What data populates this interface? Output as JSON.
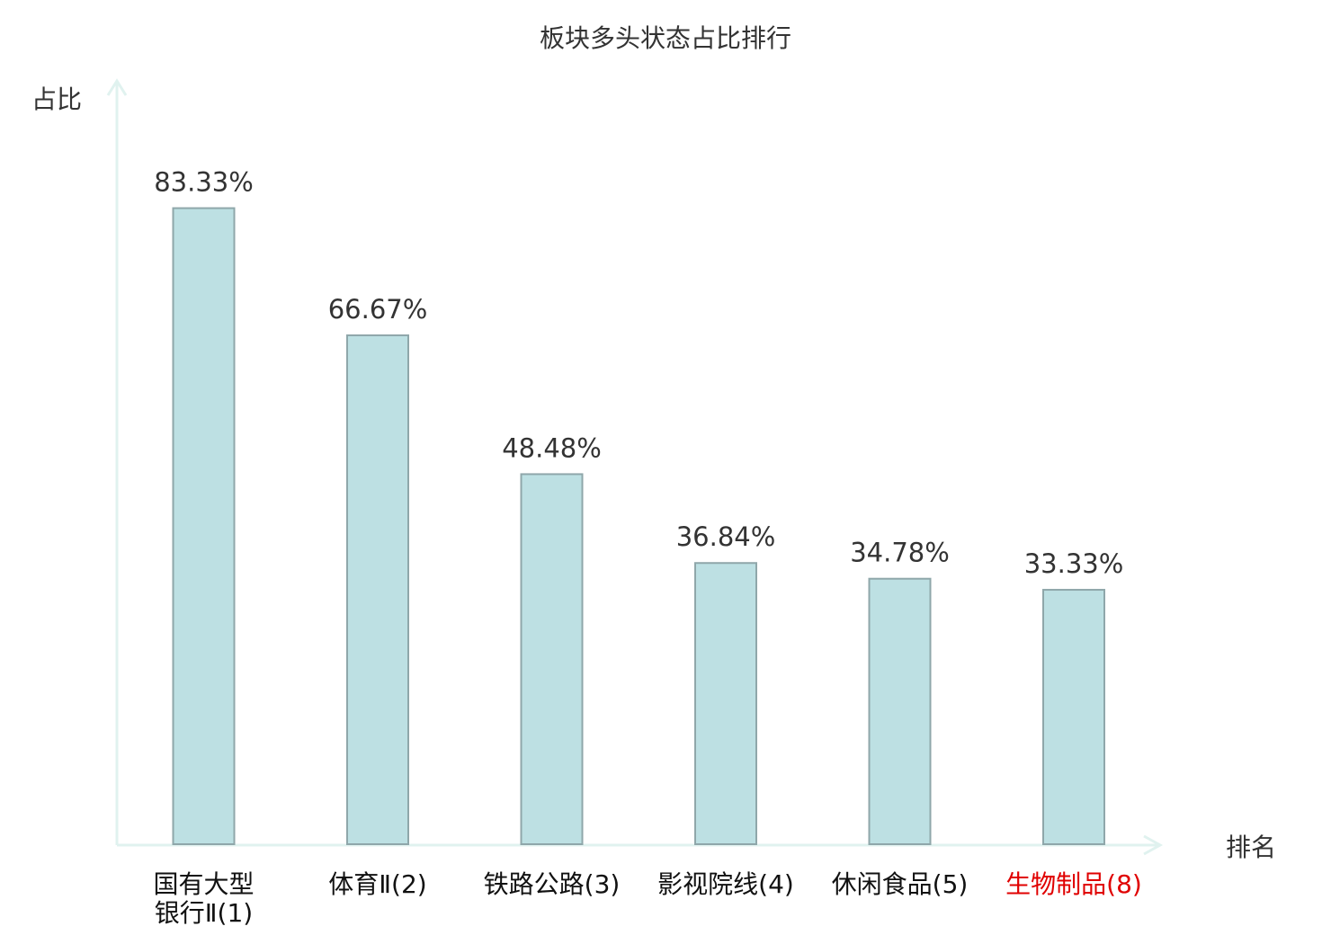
{
  "chart_data": {
    "type": "bar",
    "title": "板块多头状态占比排行",
    "ylabel": "占比",
    "xlabel": "排名",
    "ylim": [
      0,
      100
    ],
    "grid": false,
    "categories": [
      {
        "lines": [
          "国有大型",
          "银行Ⅱ(1)"
        ],
        "highlight": false
      },
      {
        "lines": [
          "体育Ⅱ(2)"
        ],
        "highlight": false
      },
      {
        "lines": [
          "铁路公路(3)"
        ],
        "highlight": false
      },
      {
        "lines": [
          "影视院线(4)"
        ],
        "highlight": false
      },
      {
        "lines": [
          "休闲食品(5)"
        ],
        "highlight": false
      },
      {
        "lines": [
          "生物制品(8)"
        ],
        "highlight": true
      }
    ],
    "values": [
      83.33,
      66.67,
      48.48,
      36.84,
      34.78,
      33.33
    ],
    "value_labels": [
      "83.33%",
      "66.67%",
      "48.48%",
      "36.84%",
      "34.78%",
      "33.33%"
    ],
    "colors": {
      "bar_fill": "#bde0e3",
      "bar_stroke": "#8fa7aa",
      "axis": "#e0f2ef",
      "text": "#333333",
      "highlight": "#e00000"
    }
  }
}
